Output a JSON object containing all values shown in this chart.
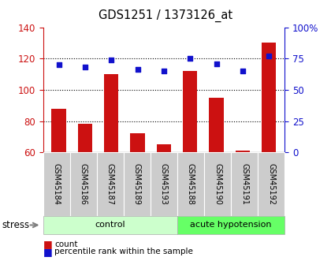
{
  "title": "GDS1251 / 1373126_at",
  "categories": [
    "GSM45184",
    "GSM45186",
    "GSM45187",
    "GSM45189",
    "GSM45193",
    "GSM45188",
    "GSM45190",
    "GSM45191",
    "GSM45192"
  ],
  "bar_values": [
    88,
    78,
    110,
    72,
    65,
    112,
    95,
    61,
    130
  ],
  "scatter_values": [
    70,
    68,
    74,
    66,
    65,
    75,
    71,
    65,
    77
  ],
  "bar_color": "#cc1111",
  "scatter_color": "#1111cc",
  "left_ylim": [
    60,
    140
  ],
  "right_ylim": [
    0,
    100
  ],
  "left_yticks": [
    60,
    80,
    100,
    120,
    140
  ],
  "right_yticks": [
    0,
    25,
    50,
    75,
    100
  ],
  "right_yticklabels": [
    "0",
    "25",
    "50",
    "75",
    "100%"
  ],
  "grid_values": [
    80,
    100,
    120
  ],
  "groups": [
    {
      "label": "control",
      "start": 0,
      "end": 5,
      "color": "#ccffcc"
    },
    {
      "label": "acute hypotension",
      "start": 5,
      "end": 9,
      "color": "#66ff66"
    }
  ],
  "stress_label": "stress",
  "legend_count": "count",
  "legend_percentile": "percentile rank within the sample",
  "xlabel_bg": "#cccccc",
  "figsize": [
    4.2,
    3.45
  ],
  "dpi": 100
}
